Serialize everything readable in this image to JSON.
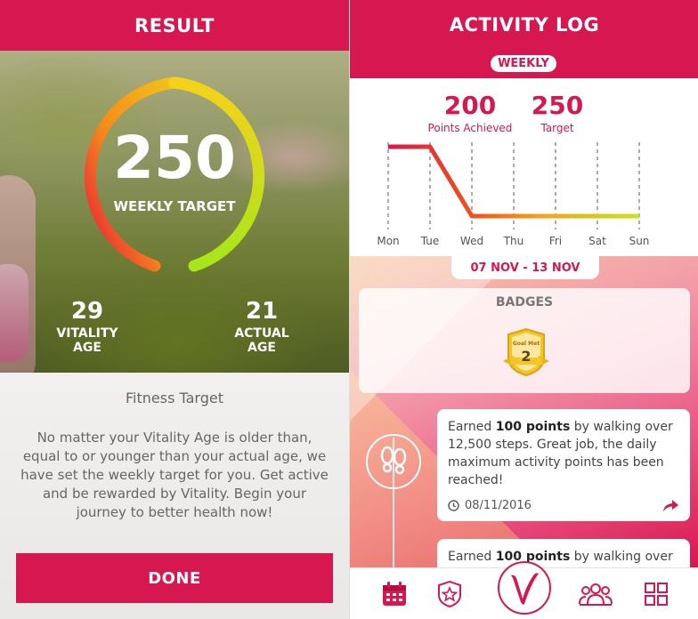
{
  "left": {
    "header_title": "RESULT",
    "gauge": {
      "value": "250",
      "label": "WEEKLY TARGET"
    },
    "vitality_age": {
      "value": "29",
      "label": "VITALITY AGE"
    },
    "actual_age": {
      "value": "21",
      "label": "ACTUAL AGE"
    },
    "info_title": "Fitness Target",
    "info_body": "No matter your Vitality Age is older than, equal to or younger than your actual age, we have set the weekly target for you. Get active and be rewarded by Vitality. Begin your journey to better health now!",
    "done_label": "DONE"
  },
  "right": {
    "header_title": "ACTIVITY LOG",
    "period_label": "WEEKLY",
    "points_achieved": {
      "value": "200",
      "label": "Points Achieved"
    },
    "target": {
      "value": "250",
      "label": "Target"
    },
    "date_range": "07 NOV - 13 NOV",
    "badges_title": "BADGES",
    "badge_caption": "Goal Met",
    "badge_count": "2",
    "feed": [
      {
        "prefix": "Earned ",
        "bold": "100 points",
        "suffix": " by walking over 12,500 steps. Great job, the daily maximum activity points has been reached!",
        "date": "08/11/2016"
      },
      {
        "prefix": "Earned ",
        "bold": "100 points",
        "suffix": " by walking over"
      }
    ],
    "nav": [
      "calendar-icon",
      "badge-star-icon",
      "vitality-logo",
      "community-icon",
      "apps-grid-icon"
    ]
  },
  "chart_data": {
    "type": "line",
    "categories": [
      "Mon",
      "Tue",
      "Wed",
      "Thu",
      "Fri",
      "Sat",
      "Sun"
    ],
    "series": [
      {
        "values": [
          250,
          250,
          0,
          0,
          0,
          0,
          0
        ]
      }
    ],
    "ylim": [
      0,
      250
    ],
    "grid": true
  },
  "colors": {
    "brand": "#d7174f",
    "gauge_start": "#e8163c",
    "gauge_end": "#b6e61a"
  }
}
